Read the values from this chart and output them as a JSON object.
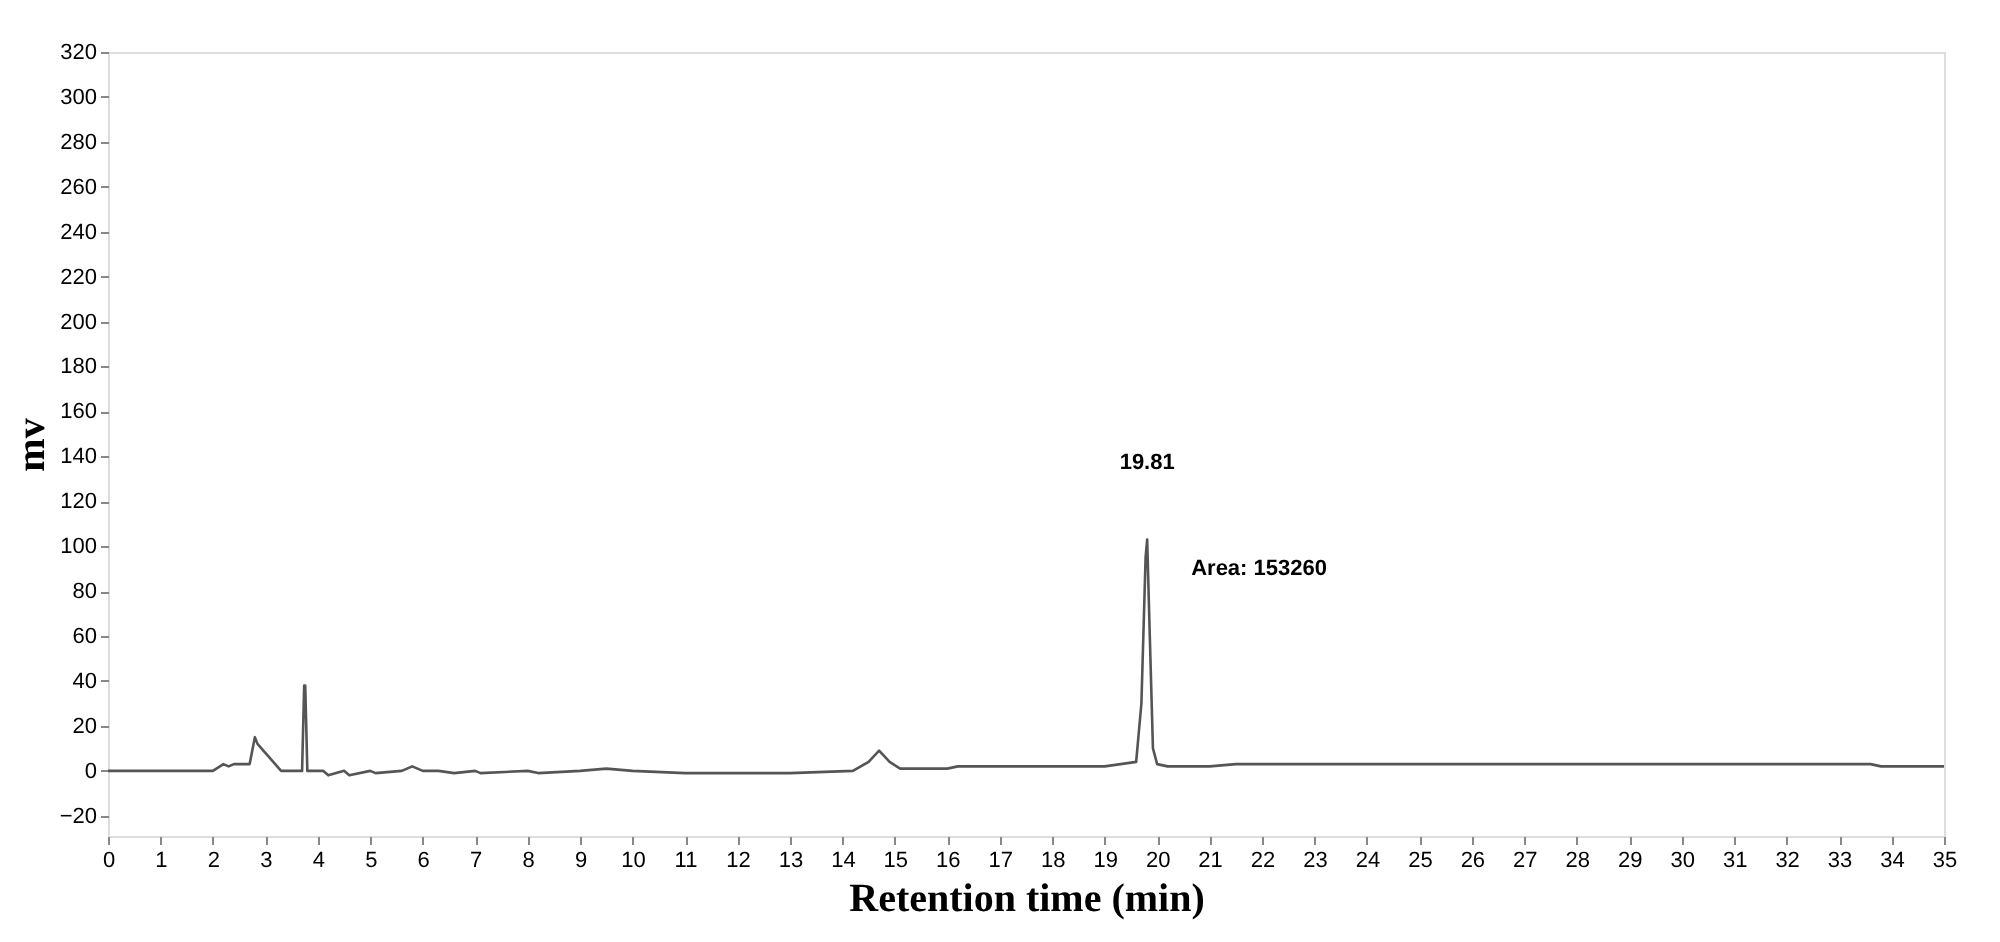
{
  "chart_data": {
    "type": "line",
    "xlabel": "Retention time (min)",
    "ylabel": "mv",
    "xlim": [
      0,
      35
    ],
    "ylim": [
      -29,
      320
    ],
    "xticks": [
      0,
      1,
      2,
      3,
      4,
      5,
      6,
      7,
      8,
      9,
      10,
      11,
      12,
      13,
      14,
      15,
      16,
      17,
      18,
      19,
      20,
      21,
      22,
      23,
      24,
      25,
      26,
      27,
      28,
      29,
      30,
      31,
      32,
      33,
      34,
      35
    ],
    "yticks": [
      -20,
      0,
      20,
      40,
      60,
      80,
      100,
      120,
      140,
      160,
      180,
      200,
      220,
      240,
      260,
      280,
      300,
      320
    ],
    "grid": false,
    "marker": "none",
    "line_style": "solid",
    "series": [
      {
        "color": "#555555",
        "x": [
          0,
          2.0,
          2.2,
          2.3,
          2.4,
          2.7,
          2.8,
          2.85,
          3.0,
          3.3,
          3.7,
          3.74,
          3.76,
          3.8,
          4.1,
          4.2,
          4.5,
          4.6,
          5.0,
          5.1,
          5.6,
          5.8,
          6.0,
          6.3,
          6.6,
          7.0,
          7.1,
          8.0,
          8.2,
          9.0,
          9.5,
          10.0,
          11.0,
          12.0,
          13.0,
          14.2,
          14.5,
          14.7,
          14.9,
          15.1,
          16.0,
          16.2,
          16.5,
          17.0,
          18.0,
          19.0,
          19.6,
          19.7,
          19.78,
          19.81,
          19.86,
          19.92,
          20.0,
          20.2,
          21.0,
          21.5,
          22.0,
          25.0,
          30.0,
          33.6,
          33.8,
          35.0
        ],
        "values": [
          0,
          0,
          3,
          2,
          3,
          3,
          15,
          12,
          8,
          0,
          0,
          38,
          38,
          0,
          0,
          -2,
          0,
          -2,
          0,
          -1,
          0,
          2,
          0,
          0,
          -1,
          0,
          -1,
          0,
          -1,
          0,
          1,
          0,
          -1,
          -1,
          -1,
          0,
          4,
          9,
          4,
          1,
          1,
          2,
          2,
          2,
          2,
          2,
          4,
          30,
          95,
          103,
          60,
          10,
          3,
          2,
          2,
          3,
          3,
          3,
          3,
          3,
          2,
          2
        ]
      }
    ],
    "annotations": [
      "19.81",
      "Area: 153260"
    ]
  }
}
